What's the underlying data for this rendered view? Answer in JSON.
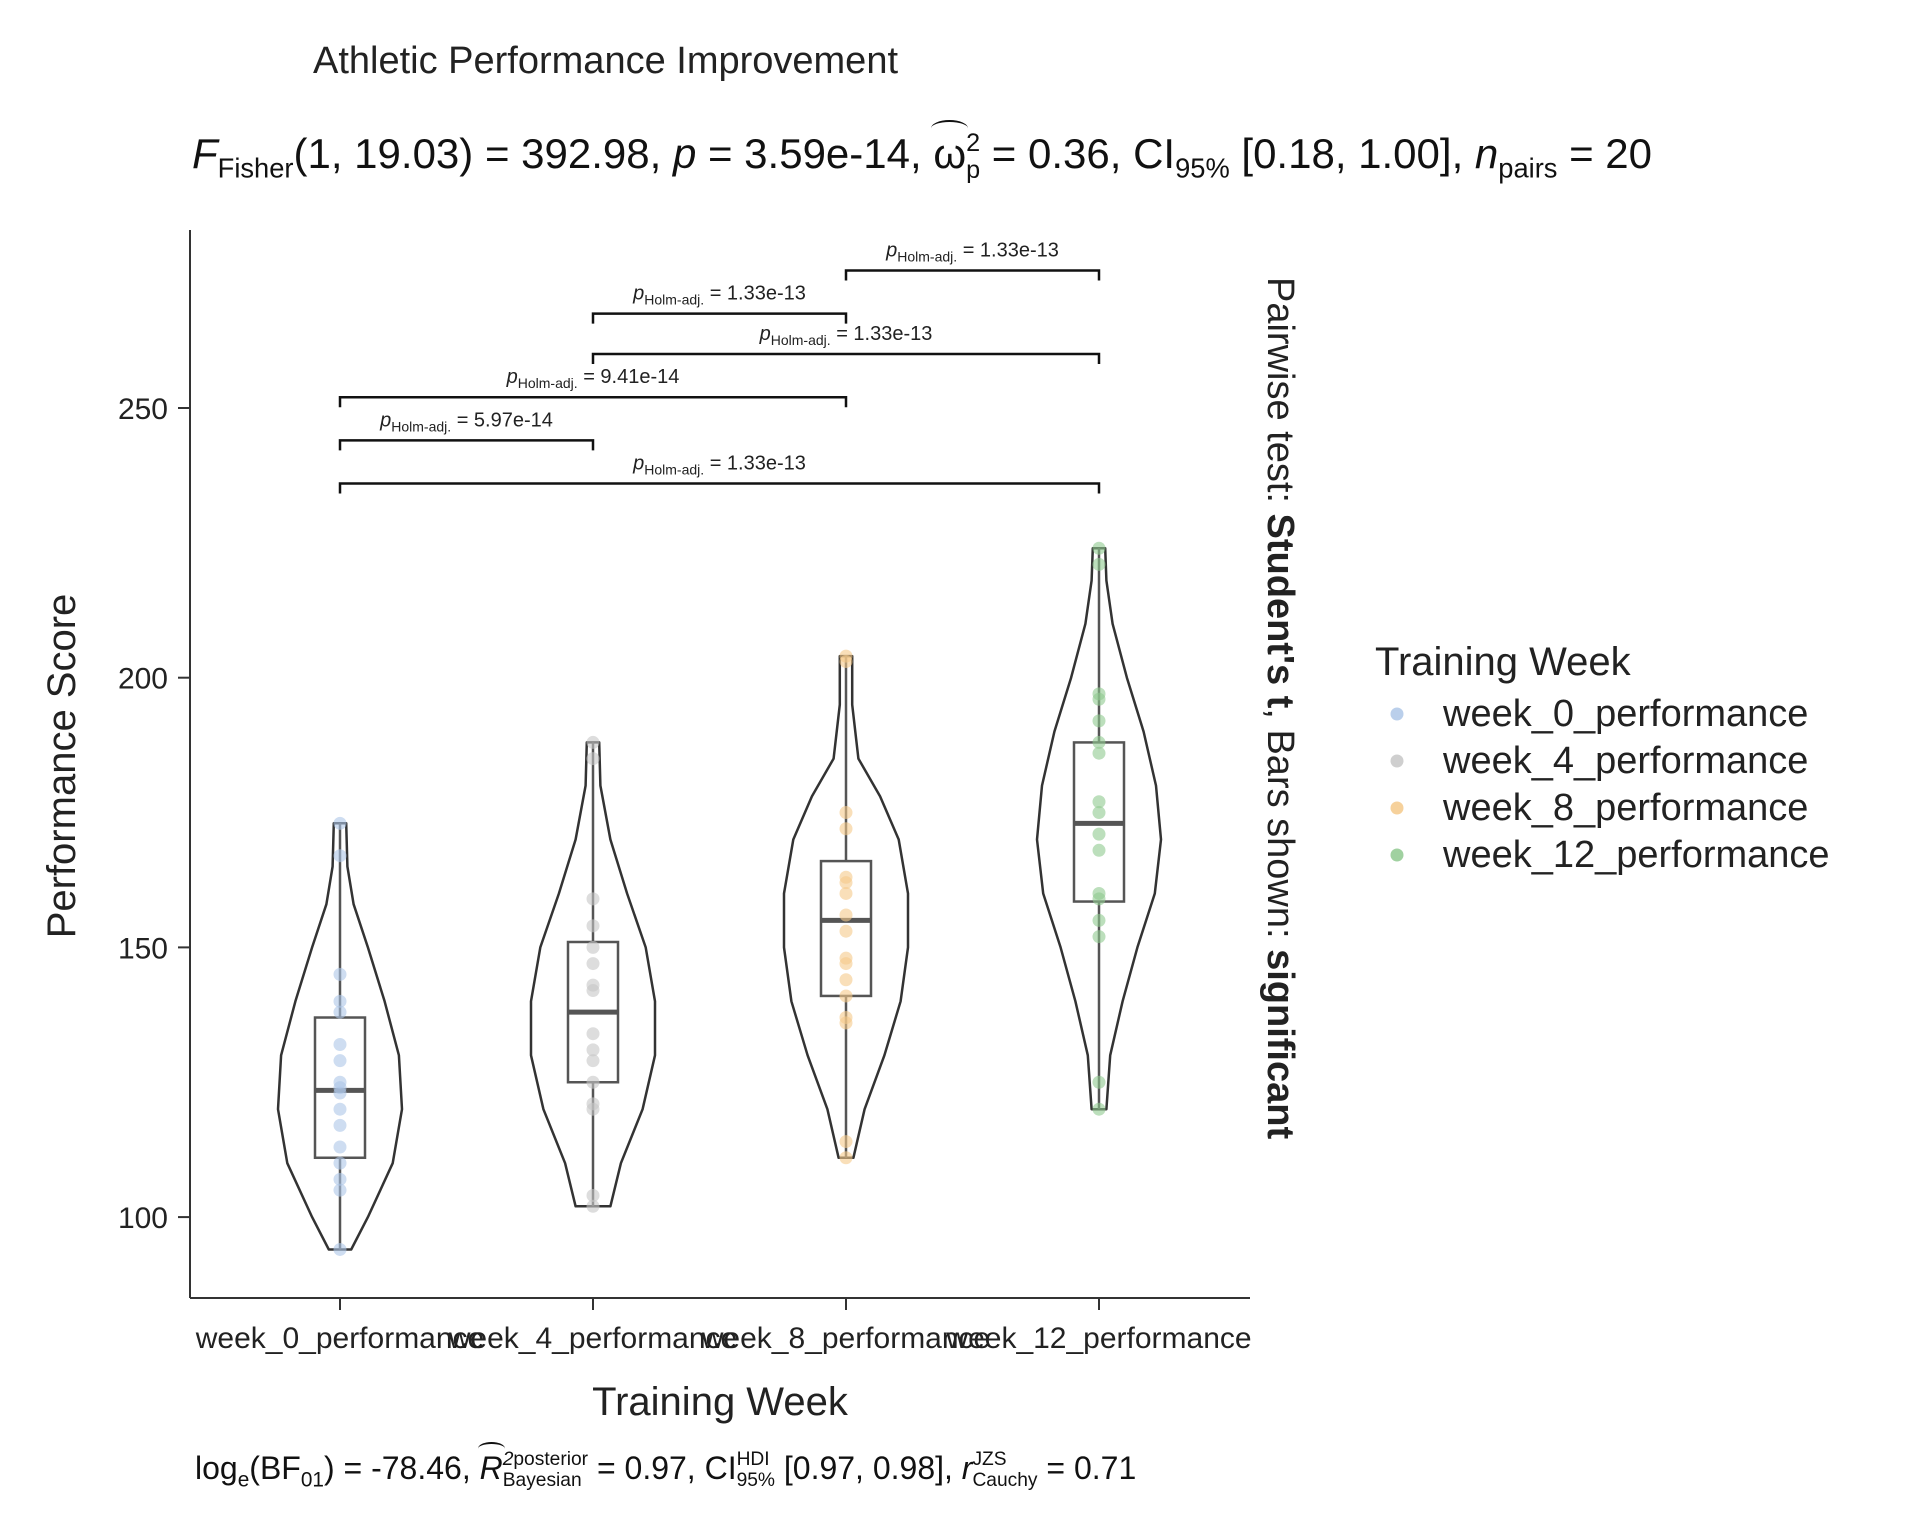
{
  "chart_data": {
    "type": "violin",
    "title": "Athletic Performance Improvement",
    "subtitle": {
      "f_label": "F",
      "f_sub": "Fisher",
      "f_args": "(1, 19.03)",
      "f_value": " = 392.98, ",
      "p_label": "p",
      "p_value": " = 3.59e-14, ",
      "omega_sym": "ω",
      "omega_sup": "2",
      "omega_sub": "p",
      "omega_value": " = 0.36, CI",
      "ci_sub": "95%",
      "ci_value": " [0.18, 1.00], ",
      "n_label": "n",
      "n_sub": "pairs",
      "n_value": " = 20"
    },
    "caption": {
      "log_label": "log",
      "log_sub": "e",
      "bf_label": "(BF",
      "bf_sub": "01",
      "bf_value": ") = -78.46, ",
      "r2_label": "R",
      "r2_sup_a": "2",
      "r2_sup_b": "posterior",
      "r2_sub": "Bayesian",
      "r2_value": " = 0.97, CI",
      "ci_sup": "HDI",
      "ci_sub": "95%",
      "ci_value": " [0.97, 0.98], ",
      "r_label": "r",
      "r_sup": "JZS",
      "r_sub": "Cauchy",
      "r_value": " = 0.71"
    },
    "xlabel": "Training Week",
    "ylabel": "Performance Score",
    "ylim": [
      85,
      283
    ],
    "yticks": [
      100,
      150,
      200,
      250
    ],
    "categories": [
      "week_0_performance",
      "week_4_performance",
      "week_8_performance",
      "week_12_performance"
    ],
    "legend": {
      "title": "Training Week",
      "position": "right",
      "entries": [
        "week_0_performance",
        "week_4_performance",
        "week_8_performance",
        "week_12_performance"
      ]
    },
    "right_label": {
      "prefix": "Pairwise test: ",
      "test": "Student's t",
      "middle": ", Bars shown: ",
      "shown": "significant"
    },
    "colors": [
      "#aec7e8",
      "#c7c7c7",
      "#f5c98a",
      "#8fc98f"
    ],
    "series": [
      {
        "name": "week_0_performance",
        "points": [
          94,
          105,
          107,
          110,
          113,
          117,
          120,
          123,
          124,
          125,
          129,
          132,
          138,
          140,
          145,
          167,
          173
        ],
        "box": {
          "q1": 111,
          "median": 123.5,
          "q3": 137,
          "min": 94,
          "max": 173
        },
        "violin": [
          [
            94,
            0.18
          ],
          [
            100,
            0.45
          ],
          [
            110,
            0.85
          ],
          [
            120,
            1.0
          ],
          [
            130,
            0.95
          ],
          [
            140,
            0.72
          ],
          [
            150,
            0.45
          ],
          [
            158,
            0.22
          ],
          [
            165,
            0.12
          ],
          [
            173,
            0.1
          ]
        ]
      },
      {
        "name": "week_4_performance",
        "points": [
          102,
          104,
          120,
          121,
          125,
          129,
          131,
          134,
          142,
          143,
          147,
          150,
          154,
          159,
          185,
          188
        ],
        "box": {
          "q1": 125,
          "median": 138,
          "q3": 151,
          "min": 102,
          "max": 188
        },
        "violin": [
          [
            102,
            0.28
          ],
          [
            110,
            0.45
          ],
          [
            120,
            0.8
          ],
          [
            130,
            1.0
          ],
          [
            140,
            1.0
          ],
          [
            150,
            0.85
          ],
          [
            160,
            0.55
          ],
          [
            170,
            0.28
          ],
          [
            180,
            0.12
          ],
          [
            188,
            0.1
          ]
        ]
      },
      {
        "name": "week_8_performance",
        "points": [
          111,
          114,
          136,
          137,
          141,
          144,
          147,
          148,
          153,
          156,
          160,
          162,
          163,
          172,
          175,
          203,
          204
        ],
        "box": {
          "q1": 141,
          "median": 155,
          "q3": 166,
          "min": 111,
          "max": 204
        },
        "violin": [
          [
            111,
            0.12
          ],
          [
            120,
            0.3
          ],
          [
            130,
            0.62
          ],
          [
            140,
            0.88
          ],
          [
            150,
            1.0
          ],
          [
            160,
            1.0
          ],
          [
            170,
            0.85
          ],
          [
            178,
            0.55
          ],
          [
            185,
            0.2
          ],
          [
            195,
            0.1
          ],
          [
            204,
            0.1
          ]
        ]
      },
      {
        "name": "week_12_performance",
        "points": [
          120,
          125,
          152,
          155,
          159,
          160,
          168,
          171,
          175,
          177,
          186,
          188,
          192,
          196,
          197,
          221,
          224
        ],
        "box": {
          "q1": 158.5,
          "median": 173,
          "q3": 188,
          "min": 120,
          "max": 224
        },
        "violin": [
          [
            120,
            0.12
          ],
          [
            130,
            0.18
          ],
          [
            140,
            0.38
          ],
          [
            150,
            0.62
          ],
          [
            160,
            0.9
          ],
          [
            170,
            1.0
          ],
          [
            180,
            0.92
          ],
          [
            190,
            0.72
          ],
          [
            200,
            0.45
          ],
          [
            210,
            0.22
          ],
          [
            218,
            0.12
          ],
          [
            224,
            0.1
          ]
        ]
      }
    ],
    "comparisons": [
      {
        "from": 0,
        "to": 1,
        "y": 244,
        "label_p": "p",
        "label_sub": "Holm-adj.",
        "label_value": " = 5.97e-14"
      },
      {
        "from": 0,
        "to": 2,
        "y": 252,
        "label_p": "p",
        "label_sub": "Holm-adj.",
        "label_value": " = 9.41e-14"
      },
      {
        "from": 1,
        "to": 3,
        "y": 260,
        "label_p": "p",
        "label_sub": "Holm-adj.",
        "label_value": " = 1.33e-13"
      },
      {
        "from": 1,
        "to": 2,
        "y": 267.5,
        "label_p": "p",
        "label_sub": "Holm-adj.",
        "label_value": " = 1.33e-13"
      },
      {
        "from": 2,
        "to": 3,
        "y": 275.5,
        "label_p": "p",
        "label_sub": "Holm-adj.",
        "label_value": " = 1.33e-13"
      },
      {
        "from": 0,
        "to": 3,
        "y": 236,
        "label_p": "p",
        "label_sub": "Holm-adj.",
        "label_value": " = 1.33e-13"
      }
    ]
  }
}
